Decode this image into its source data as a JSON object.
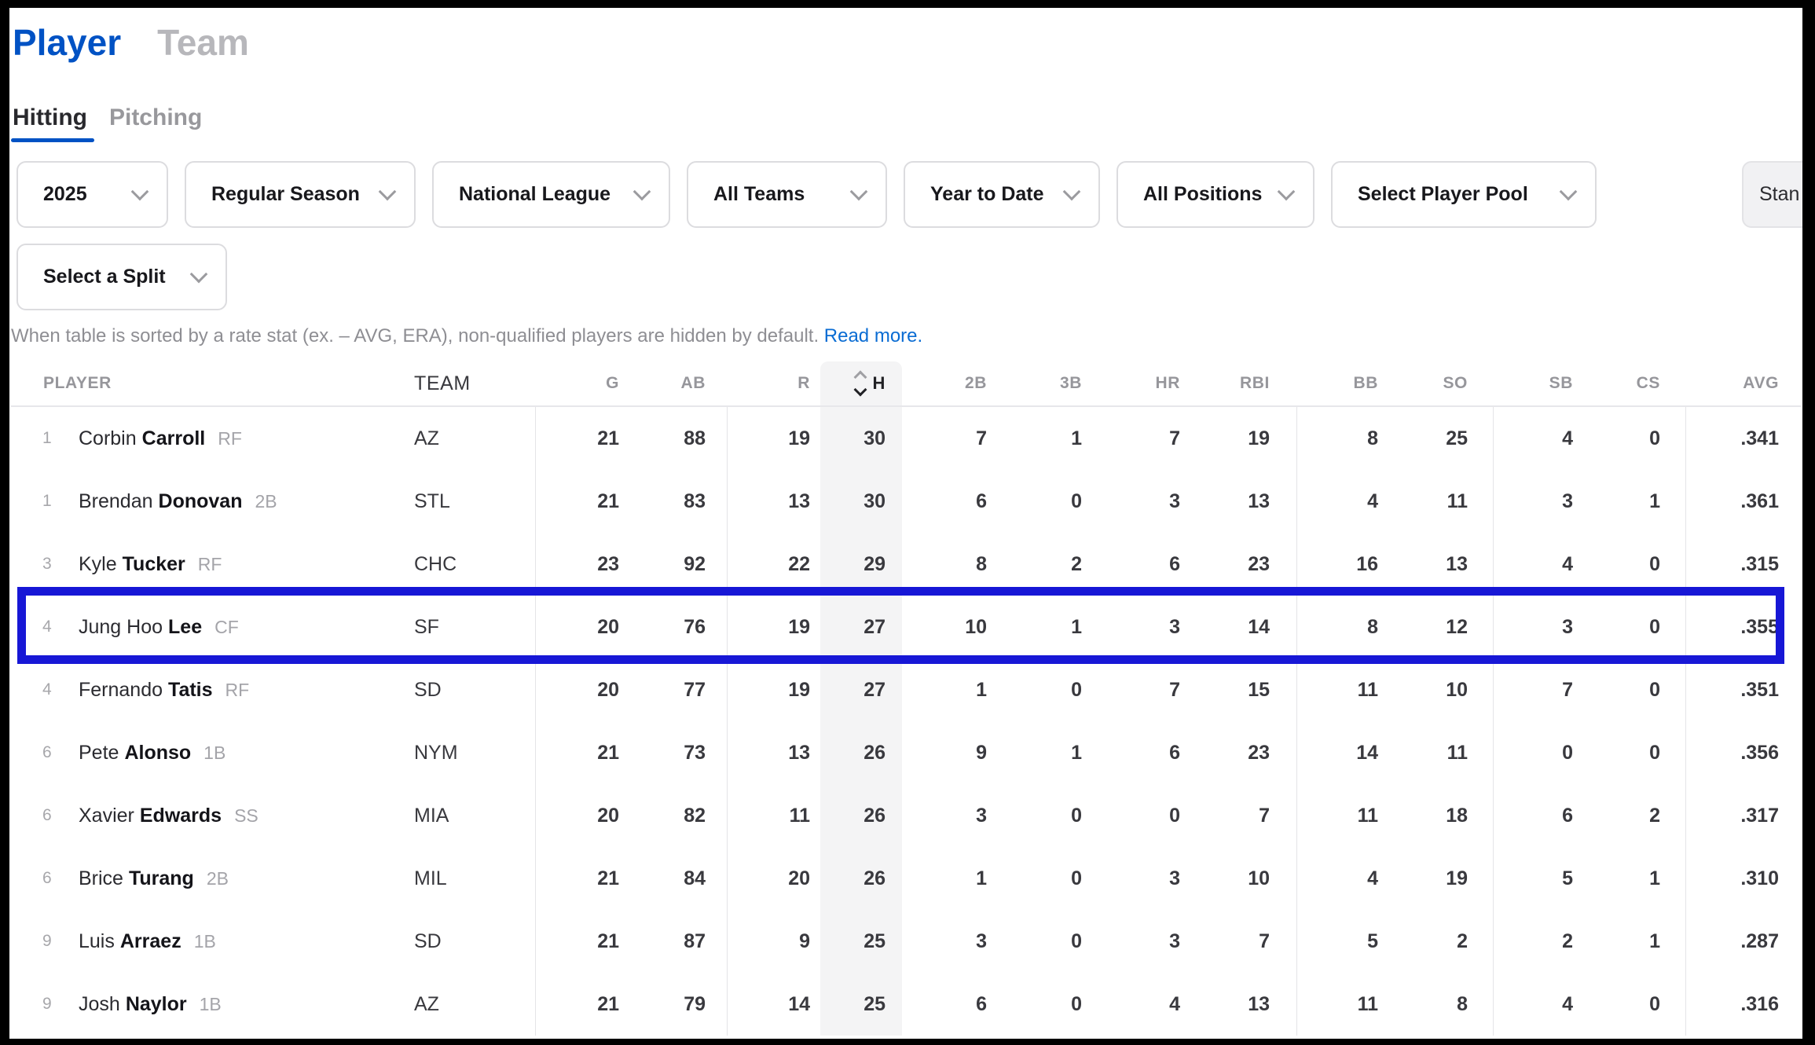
{
  "colors": {
    "accent_blue": "#0052c4",
    "link_blue": "#0a6cd3",
    "highlight_border": "#1717d6",
    "sorted_band": "#f4f4f5"
  },
  "page_tabs": {
    "player": "Player",
    "team": "Team",
    "active": "Player"
  },
  "stat_tabs": {
    "hitting": "Hitting",
    "pitching": "Pitching",
    "active": "Hitting"
  },
  "filters": {
    "season": "2025",
    "season_type": "Regular Season",
    "league": "National League",
    "teams": "All Teams",
    "date_range": "Year to Date",
    "positions": "All Positions",
    "player_pool": "Select Player Pool",
    "split": "Select a Split",
    "report_type_partial": "Stan"
  },
  "note": {
    "text": "When table is sorted by a rate stat (ex. – AVG, ERA), non-qualified players are hidden by default. ",
    "link": "Read more."
  },
  "table": {
    "columns": [
      "PLAYER",
      "TEAM",
      "G",
      "AB",
      "R",
      "H",
      "2B",
      "3B",
      "HR",
      "RBI",
      "BB",
      "SO",
      "SB",
      "CS",
      "AVG"
    ],
    "sort": {
      "column": "H",
      "direction": "desc"
    },
    "rows": [
      {
        "rank": "1",
        "first": "Corbin",
        "last": "Carroll",
        "pos": "RF",
        "team": "AZ",
        "g": "21",
        "ab": "88",
        "r": "19",
        "h": "30",
        "2b": "7",
        "3b": "1",
        "hr": "7",
        "rbi": "19",
        "bb": "8",
        "so": "25",
        "sb": "4",
        "cs": "0",
        "avg": ".341",
        "highlighted": false
      },
      {
        "rank": "1",
        "first": "Brendan",
        "last": "Donovan",
        "pos": "2B",
        "team": "STL",
        "g": "21",
        "ab": "83",
        "r": "13",
        "h": "30",
        "2b": "6",
        "3b": "0",
        "hr": "3",
        "rbi": "13",
        "bb": "4",
        "so": "11",
        "sb": "3",
        "cs": "1",
        "avg": ".361",
        "highlighted": false
      },
      {
        "rank": "3",
        "first": "Kyle",
        "last": "Tucker",
        "pos": "RF",
        "team": "CHC",
        "g": "23",
        "ab": "92",
        "r": "22",
        "h": "29",
        "2b": "8",
        "3b": "2",
        "hr": "6",
        "rbi": "23",
        "bb": "16",
        "so": "13",
        "sb": "4",
        "cs": "0",
        "avg": ".315",
        "highlighted": false
      },
      {
        "rank": "4",
        "first": "Jung Hoo",
        "last": "Lee",
        "pos": "CF",
        "team": "SF",
        "g": "20",
        "ab": "76",
        "r": "19",
        "h": "27",
        "2b": "10",
        "3b": "1",
        "hr": "3",
        "rbi": "14",
        "bb": "8",
        "so": "12",
        "sb": "3",
        "cs": "0",
        "avg": ".355",
        "highlighted": true
      },
      {
        "rank": "4",
        "first": "Fernando",
        "last": "Tatis",
        "pos": "RF",
        "team": "SD",
        "g": "20",
        "ab": "77",
        "r": "19",
        "h": "27",
        "2b": "1",
        "3b": "0",
        "hr": "7",
        "rbi": "15",
        "bb": "11",
        "so": "10",
        "sb": "7",
        "cs": "0",
        "avg": ".351",
        "highlighted": false
      },
      {
        "rank": "6",
        "first": "Pete",
        "last": "Alonso",
        "pos": "1B",
        "team": "NYM",
        "g": "21",
        "ab": "73",
        "r": "13",
        "h": "26",
        "2b": "9",
        "3b": "1",
        "hr": "6",
        "rbi": "23",
        "bb": "14",
        "so": "11",
        "sb": "0",
        "cs": "0",
        "avg": ".356",
        "highlighted": false
      },
      {
        "rank": "6",
        "first": "Xavier",
        "last": "Edwards",
        "pos": "SS",
        "team": "MIA",
        "g": "20",
        "ab": "82",
        "r": "11",
        "h": "26",
        "2b": "3",
        "3b": "0",
        "hr": "0",
        "rbi": "7",
        "bb": "11",
        "so": "18",
        "sb": "6",
        "cs": "2",
        "avg": ".317",
        "highlighted": false
      },
      {
        "rank": "6",
        "first": "Brice",
        "last": "Turang",
        "pos": "2B",
        "team": "MIL",
        "g": "21",
        "ab": "84",
        "r": "20",
        "h": "26",
        "2b": "1",
        "3b": "0",
        "hr": "3",
        "rbi": "10",
        "bb": "4",
        "so": "19",
        "sb": "5",
        "cs": "1",
        "avg": ".310",
        "highlighted": false
      },
      {
        "rank": "9",
        "first": "Luis",
        "last": "Arraez",
        "pos": "1B",
        "team": "SD",
        "g": "21",
        "ab": "87",
        "r": "9",
        "h": "25",
        "2b": "3",
        "3b": "0",
        "hr": "3",
        "rbi": "7",
        "bb": "5",
        "so": "2",
        "sb": "2",
        "cs": "1",
        "avg": ".287",
        "highlighted": false
      },
      {
        "rank": "9",
        "first": "Josh",
        "last": "Naylor",
        "pos": "1B",
        "team": "AZ",
        "g": "21",
        "ab": "79",
        "r": "14",
        "h": "25",
        "2b": "6",
        "3b": "0",
        "hr": "4",
        "rbi": "13",
        "bb": "11",
        "so": "8",
        "sb": "4",
        "cs": "0",
        "avg": ".316",
        "highlighted": false
      }
    ]
  }
}
